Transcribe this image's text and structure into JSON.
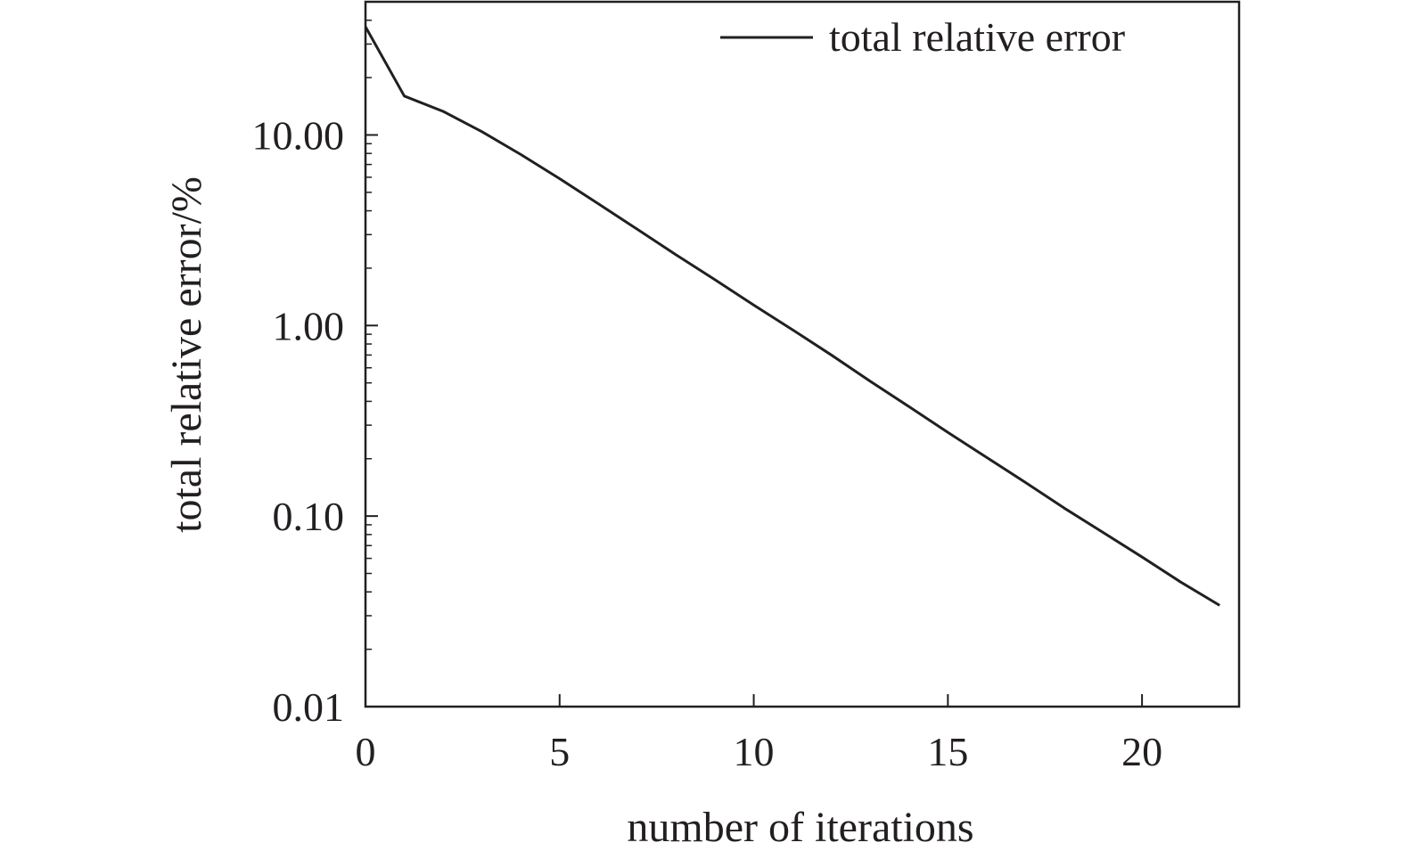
{
  "chart_data": {
    "type": "line",
    "title": "",
    "xlabel": "number of iterations",
    "ylabel": "total relative error/%",
    "xlim": [
      0,
      22.5
    ],
    "ylim": [
      0.01,
      50
    ],
    "yscale": "log",
    "x_ticks": [
      0,
      5,
      10,
      15,
      20
    ],
    "x_tick_labels": [
      "0",
      "5",
      "10",
      "15",
      "20"
    ],
    "y_ticks": [
      0.01,
      0.1,
      1,
      10
    ],
    "y_tick_labels": [
      "0.01",
      "0.10",
      "1.00",
      "10.00"
    ],
    "grid": false,
    "legend_position": "top-right",
    "series": [
      {
        "name": "total relative error",
        "color": "#231f20",
        "x": [
          0,
          1,
          2,
          3,
          4,
          5,
          6,
          7,
          8,
          9,
          10,
          11,
          12,
          13,
          14,
          15,
          16,
          17,
          18,
          19,
          20,
          21,
          22
        ],
        "y": [
          37,
          16,
          13.3,
          10.4,
          7.9,
          5.9,
          4.35,
          3.2,
          2.35,
          1.74,
          1.28,
          0.95,
          0.7,
          0.51,
          0.375,
          0.275,
          0.203,
          0.15,
          0.11,
          0.082,
          0.061,
          0.045,
          0.034
        ]
      }
    ]
  }
}
